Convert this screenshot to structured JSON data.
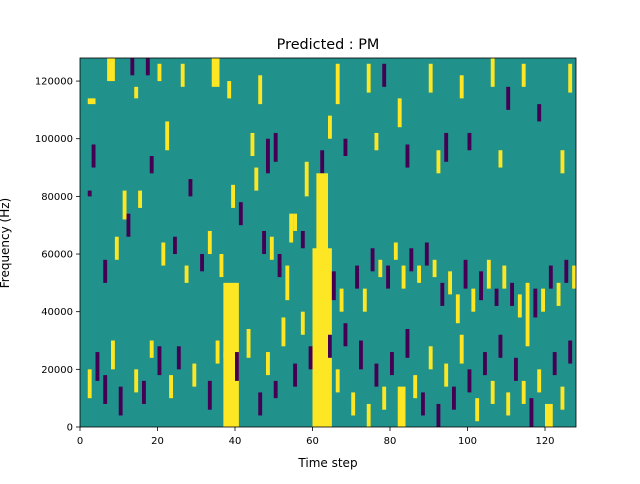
{
  "chart_data": {
    "type": "heatmap",
    "title": "Predicted : PM",
    "xlabel": "Time step",
    "ylabel": "Frequency (Hz)",
    "xlim": [
      0,
      128
    ],
    "ylim": [
      0,
      128000
    ],
    "x_ticks": [
      0,
      20,
      40,
      60,
      80,
      100,
      120
    ],
    "x_tick_labels": [
      "0",
      "20",
      "40",
      "60",
      "80",
      "100",
      "120"
    ],
    "y_ticks": [
      0,
      20000,
      40000,
      60000,
      80000,
      100000,
      120000
    ],
    "y_tick_labels": [
      "0",
      "20000",
      "40000",
      "60000",
      "80000",
      "100000",
      "120000"
    ],
    "grid": false,
    "legend": "none",
    "colormap": "viridis",
    "value_levels": {
      "low": -1,
      "mid": 0,
      "high": 1
    },
    "colors": {
      "low": "#440154",
      "mid": "#21918c",
      "high": "#fde725"
    },
    "time_steps": 128,
    "frequency_bins": 64,
    "bin_height_hz": 2000,
    "background_value": 0,
    "cells": [
      [
        2,
        60,
        0,
        0,
        1
      ],
      [
        3,
        58,
        61,
        0,
        1
      ],
      [
        4,
        55,
        58,
        0,
        1
      ],
      [
        2,
        56,
        56,
        1,
        2
      ],
      [
        2,
        40,
        40,
        -1,
        1
      ],
      [
        2,
        62,
        63,
        0,
        1
      ],
      [
        3,
        45,
        48,
        -1,
        1
      ],
      [
        7,
        60,
        63,
        1,
        2
      ],
      [
        13,
        61,
        63,
        -1,
        1
      ],
      [
        14,
        57,
        58,
        1,
        1
      ],
      [
        16,
        58,
        61,
        0,
        1
      ],
      [
        17,
        61,
        63,
        -1,
        1
      ],
      [
        20,
        60,
        62,
        1,
        1
      ],
      [
        26,
        59,
        62,
        1,
        1
      ],
      [
        30,
        59,
        63,
        0,
        1
      ],
      [
        32,
        56,
        63,
        0,
        1
      ],
      [
        34,
        59,
        63,
        1,
        2
      ],
      [
        38,
        57,
        59,
        1,
        1
      ],
      [
        42,
        53,
        56,
        0,
        1
      ],
      [
        46,
        56,
        60,
        1,
        1
      ],
      [
        48,
        44,
        49,
        -1,
        1
      ],
      [
        52,
        40,
        48,
        0,
        1
      ],
      [
        54,
        32,
        36,
        1,
        1
      ],
      [
        56,
        45,
        50,
        0,
        1
      ],
      [
        58,
        40,
        45,
        1,
        1
      ],
      [
        62,
        44,
        47,
        -1,
        1
      ],
      [
        66,
        56,
        62,
        1,
        1
      ],
      [
        70,
        54,
        57,
        0,
        1
      ],
      [
        74,
        58,
        62,
        1,
        1
      ],
      [
        78,
        59,
        62,
        -1,
        1
      ],
      [
        82,
        52,
        56,
        1,
        1
      ],
      [
        86,
        50,
        53,
        0,
        1
      ],
      [
        90,
        58,
        62,
        1,
        1
      ],
      [
        94,
        46,
        50,
        -1,
        1
      ],
      [
        98,
        57,
        60,
        1,
        1
      ],
      [
        102,
        52,
        56,
        0,
        1
      ],
      [
        106,
        59,
        63,
        1,
        1
      ],
      [
        110,
        55,
        58,
        -1,
        1
      ],
      [
        114,
        59,
        62,
        1,
        1
      ],
      [
        118,
        53,
        55,
        -1,
        1
      ],
      [
        122,
        50,
        53,
        0,
        1
      ],
      [
        126,
        58,
        62,
        1,
        1
      ],
      [
        11,
        36,
        40,
        1,
        1
      ],
      [
        18,
        44,
        46,
        -1,
        1
      ],
      [
        22,
        48,
        52,
        1,
        1
      ],
      [
        28,
        40,
        42,
        -1,
        1
      ],
      [
        44,
        47,
        50,
        1,
        1
      ],
      [
        50,
        46,
        50,
        -1,
        1
      ],
      [
        64,
        50,
        53,
        1,
        1
      ],
      [
        68,
        47,
        49,
        -1,
        1
      ],
      [
        76,
        48,
        50,
        1,
        1
      ],
      [
        84,
        45,
        48,
        -1,
        1
      ],
      [
        92,
        44,
        47,
        1,
        1
      ],
      [
        100,
        48,
        50,
        -1,
        1
      ],
      [
        108,
        45,
        47,
        1,
        1
      ],
      [
        116,
        47,
        50,
        0,
        1
      ],
      [
        124,
        44,
        47,
        1,
        1
      ],
      [
        6,
        25,
        28,
        -1,
        1
      ],
      [
        9,
        29,
        32,
        1,
        1
      ],
      [
        12,
        33,
        36,
        -1,
        1
      ],
      [
        15,
        38,
        40,
        1,
        1
      ],
      [
        19,
        34,
        36,
        0,
        1
      ],
      [
        21,
        28,
        31,
        1,
        1
      ],
      [
        24,
        30,
        32,
        -1,
        1
      ],
      [
        27,
        25,
        27,
        1,
        1
      ],
      [
        31,
        27,
        29,
        -1,
        1
      ],
      [
        33,
        30,
        33,
        1,
        1
      ],
      [
        36,
        26,
        29,
        1,
        1
      ],
      [
        37,
        12,
        24,
        1,
        4
      ],
      [
        39,
        38,
        41,
        1,
        1
      ],
      [
        41,
        35,
        38,
        -1,
        1
      ],
      [
        45,
        41,
        44,
        1,
        1
      ],
      [
        47,
        30,
        33,
        -1,
        1
      ],
      [
        49,
        29,
        32,
        1,
        1
      ],
      [
        51,
        26,
        29,
        -1,
        1
      ],
      [
        53,
        22,
        27,
        1,
        1
      ],
      [
        55,
        34,
        36,
        1,
        1
      ],
      [
        57,
        31,
        33,
        -1,
        1
      ],
      [
        60,
        0,
        30,
        1,
        5
      ],
      [
        61,
        30,
        43,
        1,
        3
      ],
      [
        63,
        27,
        30,
        1,
        1
      ],
      [
        65,
        22,
        26,
        -1,
        1
      ],
      [
        67,
        20,
        23,
        1,
        1
      ],
      [
        69,
        31,
        33,
        0,
        1
      ],
      [
        71,
        24,
        27,
        -1,
        1
      ],
      [
        73,
        20,
        23,
        1,
        1
      ],
      [
        75,
        27,
        30,
        -1,
        1
      ],
      [
        77,
        26,
        28,
        1,
        1
      ],
      [
        79,
        24,
        27,
        -1,
        1
      ],
      [
        81,
        29,
        31,
        1,
        1
      ],
      [
        83,
        24,
        27,
        1,
        1
      ],
      [
        85,
        27,
        30,
        -1,
        1
      ],
      [
        87,
        25,
        27,
        1,
        1
      ],
      [
        89,
        28,
        31,
        -1,
        1
      ],
      [
        91,
        26,
        28,
        1,
        1
      ],
      [
        93,
        21,
        24,
        -1,
        1
      ],
      [
        95,
        23,
        26,
        1,
        1
      ],
      [
        97,
        18,
        22,
        1,
        1
      ],
      [
        99,
        24,
        28,
        -1,
        1
      ],
      [
        101,
        20,
        23,
        1,
        1
      ],
      [
        103,
        22,
        26,
        -1,
        1
      ],
      [
        105,
        24,
        28,
        1,
        1
      ],
      [
        107,
        21,
        23,
        -1,
        1
      ],
      [
        109,
        24,
        27,
        1,
        1
      ],
      [
        111,
        21,
        24,
        -1,
        1
      ],
      [
        113,
        19,
        22,
        1,
        1
      ],
      [
        115,
        14,
        24,
        1,
        1
      ],
      [
        117,
        19,
        23,
        -1,
        1
      ],
      [
        119,
        20,
        23,
        1,
        1
      ],
      [
        121,
        24,
        27,
        -1,
        1
      ],
      [
        123,
        21,
        24,
        1,
        1
      ],
      [
        125,
        25,
        28,
        -1,
        1
      ],
      [
        127,
        24,
        27,
        1,
        1
      ],
      [
        2,
        5,
        9,
        1,
        1
      ],
      [
        4,
        8,
        12,
        -1,
        1
      ],
      [
        6,
        4,
        8,
        -1,
        1
      ],
      [
        8,
        10,
        14,
        1,
        1
      ],
      [
        10,
        2,
        6,
        -1,
        1
      ],
      [
        14,
        6,
        9,
        1,
        1
      ],
      [
        16,
        4,
        7,
        -1,
        1
      ],
      [
        18,
        12,
        14,
        1,
        1
      ],
      [
        20,
        9,
        13,
        -1,
        1
      ],
      [
        23,
        5,
        8,
        1,
        1
      ],
      [
        25,
        10,
        13,
        -1,
        1
      ],
      [
        29,
        7,
        10,
        1,
        1
      ],
      [
        33,
        3,
        7,
        -1,
        1
      ],
      [
        35,
        11,
        14,
        1,
        1
      ],
      [
        37,
        0,
        12,
        1,
        4
      ],
      [
        40,
        8,
        12,
        -1,
        1
      ],
      [
        43,
        12,
        16,
        1,
        1
      ],
      [
        46,
        2,
        5,
        -1,
        1
      ],
      [
        48,
        9,
        12,
        1,
        1
      ],
      [
        50,
        5,
        7,
        -1,
        1
      ],
      [
        52,
        14,
        18,
        1,
        1
      ],
      [
        55,
        7,
        10,
        -1,
        1
      ],
      [
        57,
        16,
        19,
        1,
        1
      ],
      [
        59,
        10,
        13,
        -1,
        1
      ],
      [
        62,
        4,
        8,
        1,
        2
      ],
      [
        64,
        12,
        15,
        -1,
        1
      ],
      [
        66,
        6,
        9,
        1,
        1
      ],
      [
        68,
        14,
        17,
        -1,
        1
      ],
      [
        70,
        2,
        5,
        1,
        1
      ],
      [
        72,
        10,
        14,
        -1,
        1
      ],
      [
        74,
        0,
        3,
        1,
        1
      ],
      [
        76,
        7,
        10,
        -1,
        1
      ],
      [
        78,
        3,
        6,
        1,
        1
      ],
      [
        80,
        9,
        12,
        -1,
        1
      ],
      [
        82,
        0,
        6,
        1,
        2
      ],
      [
        84,
        12,
        16,
        -1,
        1
      ],
      [
        86,
        5,
        8,
        1,
        1
      ],
      [
        88,
        2,
        5,
        -1,
        1
      ],
      [
        90,
        10,
        13,
        1,
        1
      ],
      [
        92,
        0,
        3,
        -1,
        1
      ],
      [
        94,
        7,
        10,
        1,
        1
      ],
      [
        96,
        3,
        6,
        -1,
        1
      ],
      [
        98,
        11,
        15,
        1,
        1
      ],
      [
        100,
        6,
        9,
        -1,
        1
      ],
      [
        102,
        1,
        4,
        1,
        1
      ],
      [
        104,
        9,
        12,
        -1,
        1
      ],
      [
        106,
        4,
        7,
        1,
        1
      ],
      [
        108,
        12,
        15,
        -1,
        1
      ],
      [
        110,
        2,
        5,
        1,
        1
      ],
      [
        112,
        8,
        11,
        -1,
        1
      ],
      [
        114,
        4,
        7,
        1,
        1
      ],
      [
        116,
        0,
        4,
        -1,
        1
      ],
      [
        118,
        6,
        9,
        1,
        1
      ],
      [
        120,
        0,
        3,
        1,
        2
      ],
      [
        122,
        9,
        12,
        -1,
        1
      ],
      [
        124,
        3,
        6,
        1,
        1
      ],
      [
        126,
        11,
        14,
        -1,
        1
      ]
    ]
  }
}
